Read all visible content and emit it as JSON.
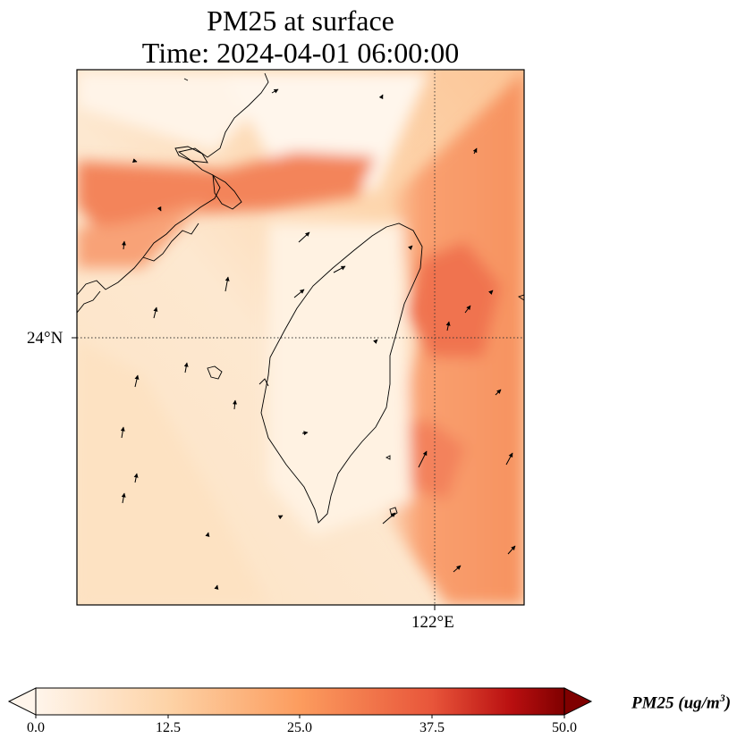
{
  "title_line1": "PM25 at surface",
  "title_line2": "Time: 2024-04-01 06:00:00",
  "lat_tick": "24°N",
  "lon_tick": "122°E",
  "colorbar": {
    "label_main": "PM25 (ug/m",
    "label_sup": "3",
    "label_end": ")",
    "ticks": [
      "0.0",
      "12.5",
      "25.0",
      "37.5",
      "50.0"
    ],
    "min": 0,
    "max": 50,
    "colormap": [
      "#fff5eb",
      "#fdd9b4",
      "#fdaa6a",
      "#f4804f",
      "#e4543a",
      "#c21818",
      "#8b0000"
    ]
  },
  "colors": {
    "low": "#fff3e3",
    "mid": "#fcc08d",
    "high": "#ef6a48"
  }
}
